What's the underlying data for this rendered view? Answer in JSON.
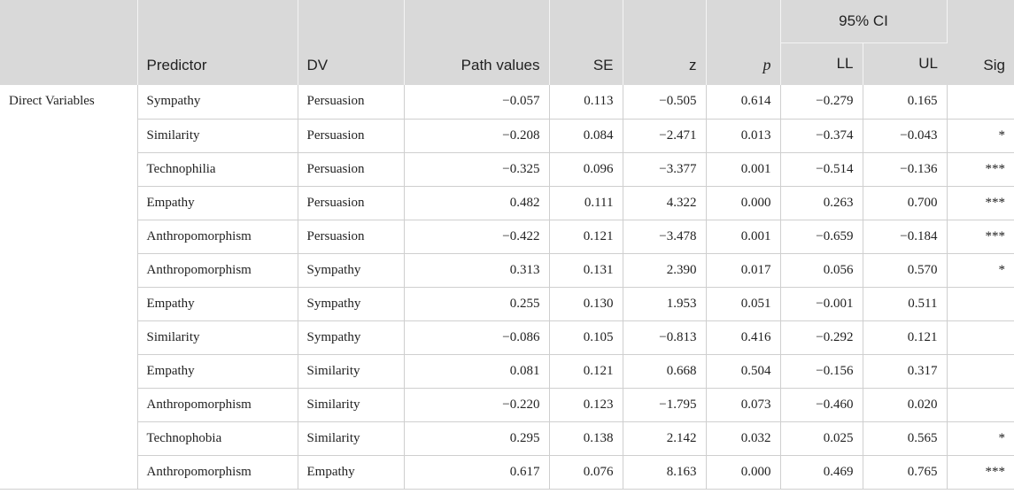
{
  "header": {
    "blank": "",
    "predictor": "Predictor",
    "dv": "DV",
    "path_values": "Path values",
    "se": "SE",
    "z": "z",
    "p": "p",
    "ci": "95% CI",
    "ll": "LL",
    "ul": "UL",
    "sig": "Sig"
  },
  "group_label": "Direct Variables",
  "rows": [
    {
      "predictor": "Sympathy",
      "dv": "Persuasion",
      "path": "−0.057",
      "se": "0.113",
      "z": "−0.505",
      "p": "0.614",
      "ll": "−0.279",
      "ul": "0.165",
      "sig": ""
    },
    {
      "predictor": "Similarity",
      "dv": "Persuasion",
      "path": "−0.208",
      "se": "0.084",
      "z": "−2.471",
      "p": "0.013",
      "ll": "−0.374",
      "ul": "−0.043",
      "sig": "*"
    },
    {
      "predictor": "Technophilia",
      "dv": "Persuasion",
      "path": "−0.325",
      "se": "0.096",
      "z": "−3.377",
      "p": "0.001",
      "ll": "−0.514",
      "ul": "−0.136",
      "sig": "***"
    },
    {
      "predictor": "Empathy",
      "dv": "Persuasion",
      "path": "0.482",
      "se": "0.111",
      "z": "4.322",
      "p": "0.000",
      "ll": "0.263",
      "ul": "0.700",
      "sig": "***"
    },
    {
      "predictor": "Anthropomorphism",
      "dv": "Persuasion",
      "path": "−0.422",
      "se": "0.121",
      "z": "−3.478",
      "p": "0.001",
      "ll": "−0.659",
      "ul": "−0.184",
      "sig": "***"
    },
    {
      "predictor": "Anthropomorphism",
      "dv": "Sympathy",
      "path": "0.313",
      "se": "0.131",
      "z": "2.390",
      "p": "0.017",
      "ll": "0.056",
      "ul": "0.570",
      "sig": "*"
    },
    {
      "predictor": "Empathy",
      "dv": "Sympathy",
      "path": "0.255",
      "se": "0.130",
      "z": "1.953",
      "p": "0.051",
      "ll": "−0.001",
      "ul": "0.511",
      "sig": ""
    },
    {
      "predictor": "Similarity",
      "dv": "Sympathy",
      "path": "−0.086",
      "se": "0.105",
      "z": "−0.813",
      "p": "0.416",
      "ll": "−0.292",
      "ul": "0.121",
      "sig": ""
    },
    {
      "predictor": "Empathy",
      "dv": "Similarity",
      "path": "0.081",
      "se": "0.121",
      "z": "0.668",
      "p": "0.504",
      "ll": "−0.156",
      "ul": "0.317",
      "sig": ""
    },
    {
      "predictor": "Anthropomorphism",
      "dv": "Similarity",
      "path": "−0.220",
      "se": "0.123",
      "z": "−1.795",
      "p": "0.073",
      "ll": "−0.460",
      "ul": "0.020",
      "sig": ""
    },
    {
      "predictor": "Technophobia",
      "dv": "Similarity",
      "path": "0.295",
      "se": "0.138",
      "z": "2.142",
      "p": "0.032",
      "ll": "0.025",
      "ul": "0.565",
      "sig": "*"
    },
    {
      "predictor": "Anthropomorphism",
      "dv": "Empathy",
      "path": "0.617",
      "se": "0.076",
      "z": "8.163",
      "p": "0.000",
      "ll": "0.469",
      "ul": "0.765",
      "sig": "***"
    }
  ]
}
